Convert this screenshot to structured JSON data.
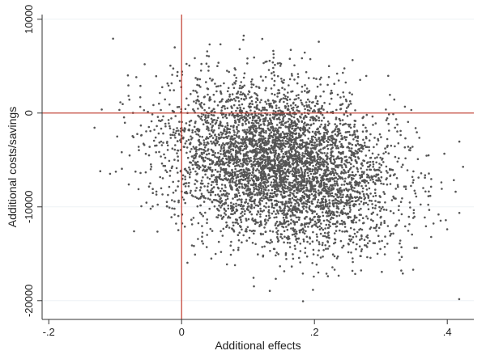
{
  "chart_data": {
    "type": "scatter",
    "title": "",
    "xlabel": "Additional effects",
    "ylabel": "Additional costs/savings",
    "xlim": [
      -0.21,
      0.44
    ],
    "ylim": [
      -22000,
      10500
    ],
    "x_ticks": [
      {
        "value": -0.2,
        "label": "-.2"
      },
      {
        "value": 0,
        "label": "0"
      },
      {
        "value": 0.2,
        "label": ".2"
      },
      {
        "value": 0.4,
        "label": ".4"
      }
    ],
    "y_ticks": [
      {
        "value": 10000,
        "label": "10000"
      },
      {
        "value": 0,
        "label": "0"
      },
      {
        "value": -10000,
        "label": "-10000"
      },
      {
        "value": -20000,
        "label": "-20000"
      }
    ],
    "reference_lines": {
      "x": 0,
      "y": 0,
      "color": "#c0392b"
    },
    "grid": "horizontal",
    "point_color": "#555555",
    "point_count_approx": 5000,
    "distribution": {
      "x_mean": 0.15,
      "x_sd": 0.085,
      "y_mean": -5500,
      "y_sd": 4300,
      "correlation": -0.25,
      "observed_x_range": [
        -0.16,
        0.43
      ],
      "observed_y_range": [
        -21500,
        8300
      ]
    }
  }
}
